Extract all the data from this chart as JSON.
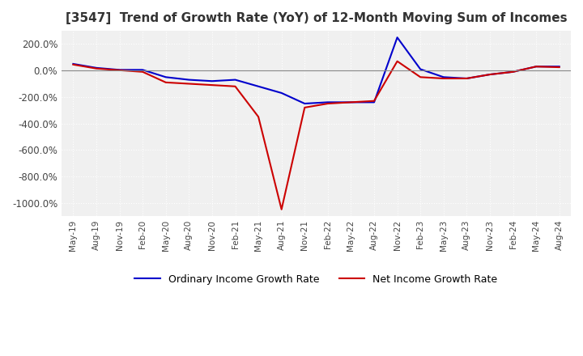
{
  "title": "[3547]  Trend of Growth Rate (YoY) of 12-Month Moving Sum of Incomes",
  "title_fontsize": 11,
  "ylim": [
    -1100,
    300
  ],
  "yticks": [
    200,
    0,
    -200,
    -400,
    -600,
    -800,
    -1000
  ],
  "ytick_labels": [
    "200.0%",
    "0.0%",
    "-200.0%",
    "-400.0%",
    "-600.0%",
    "-800.0%",
    "-1000.0%"
  ],
  "background_color": "#ffffff",
  "plot_bg_color": "#f0f0f0",
  "grid_color": "#ffffff",
  "grid_style": "dotted",
  "ordinary_color": "#0000cc",
  "net_color": "#cc0000",
  "legend_ordinary": "Ordinary Income Growth Rate",
  "legend_net": "Net Income Growth Rate",
  "x_labels": [
    "May-19",
    "Aug-19",
    "Nov-19",
    "Feb-20",
    "May-20",
    "Aug-20",
    "Nov-20",
    "Feb-21",
    "May-21",
    "Aug-21",
    "Nov-21",
    "Feb-22",
    "May-22",
    "Aug-22",
    "Nov-22",
    "Feb-23",
    "May-23",
    "Aug-23",
    "Nov-23",
    "Feb-24",
    "May-24",
    "Aug-24"
  ],
  "ordinary_values": [
    50,
    20,
    5,
    5,
    -50,
    -70,
    -80,
    -70,
    -120,
    -170,
    -250,
    -240,
    -240,
    -240,
    250,
    10,
    -50,
    -60,
    -30,
    -10,
    30,
    30
  ],
  "net_values": [
    45,
    15,
    2,
    -10,
    -90,
    -100,
    -110,
    -120,
    -350,
    -1050,
    -280,
    -250,
    -240,
    -230,
    70,
    -50,
    -60,
    -60,
    -30,
    -10,
    30,
    25
  ]
}
